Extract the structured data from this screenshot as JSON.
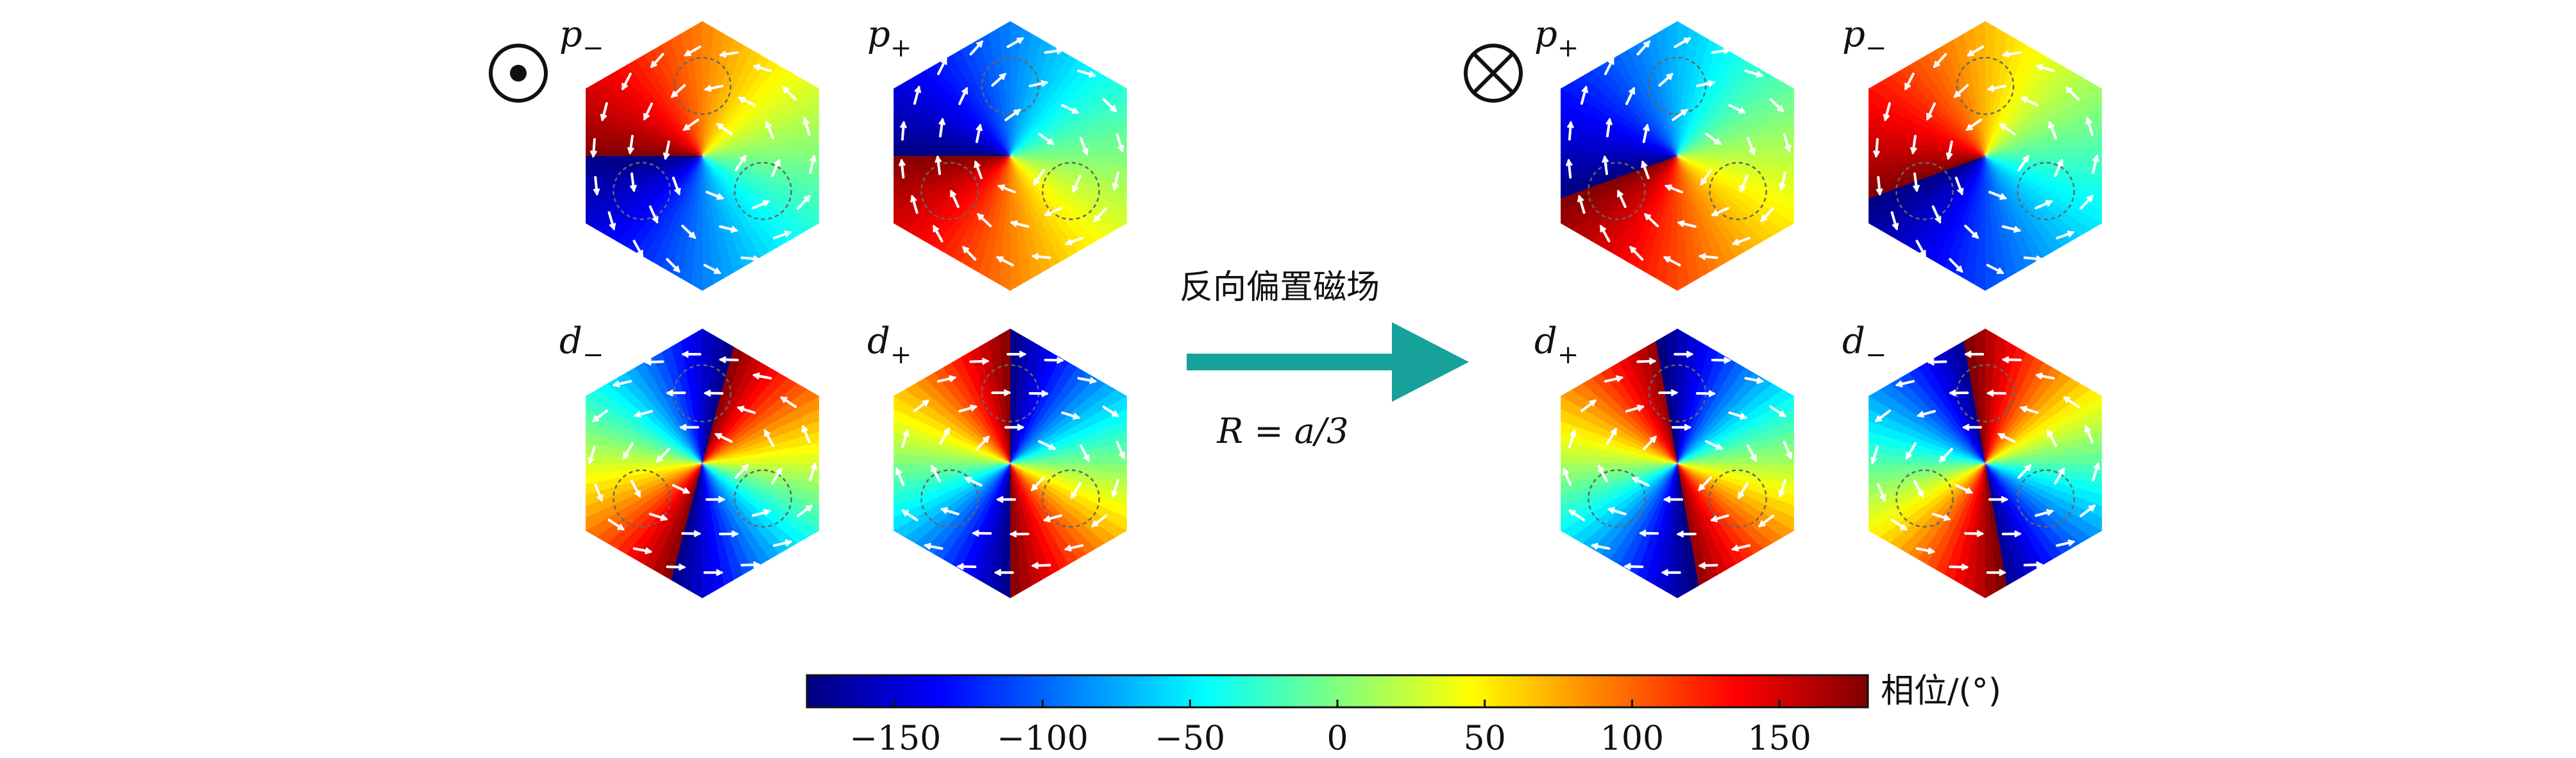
{
  "left_group": {
    "field_symbol": "dot-circle (out of plane)",
    "panels": [
      {
        "name": "p",
        "sign": "−",
        "offset_deg": 0,
        "dir": -1,
        "m": 1
      },
      {
        "name": "p",
        "sign": "+",
        "offset_deg": 0,
        "dir": 1,
        "m": 1
      },
      {
        "name": "d",
        "sign": "−",
        "offset_deg": 30,
        "dir": -1,
        "m": 2
      },
      {
        "name": "d",
        "sign": "+",
        "offset_deg": 0,
        "dir": 1,
        "m": 2
      }
    ]
  },
  "right_group": {
    "field_symbol": "cross-circle (into plane)",
    "panels": [
      {
        "name": "p",
        "sign": "+",
        "offset_deg": 20,
        "dir": 1,
        "m": 1
      },
      {
        "name": "p",
        "sign": "−",
        "offset_deg": -20,
        "dir": -1,
        "m": 1
      },
      {
        "name": "d",
        "sign": "+",
        "offset_deg": 15,
        "dir": 1,
        "m": 2
      },
      {
        "name": "d",
        "sign": "−",
        "offset_deg": -15,
        "dir": -1,
        "m": 2
      }
    ]
  },
  "arrow": {
    "label_top": "反向偏置磁场",
    "label_bottom": "R = a/3",
    "color": "#16a29a"
  },
  "colorbar": {
    "label": "相位/(°)",
    "min": -180,
    "max": 180,
    "ticks": [
      -150,
      -100,
      -50,
      0,
      50,
      100,
      150
    ],
    "tick_labels": [
      "−150",
      "−100",
      "−50",
      "0",
      "50",
      "100",
      "150"
    ],
    "colormap": "jet"
  }
}
